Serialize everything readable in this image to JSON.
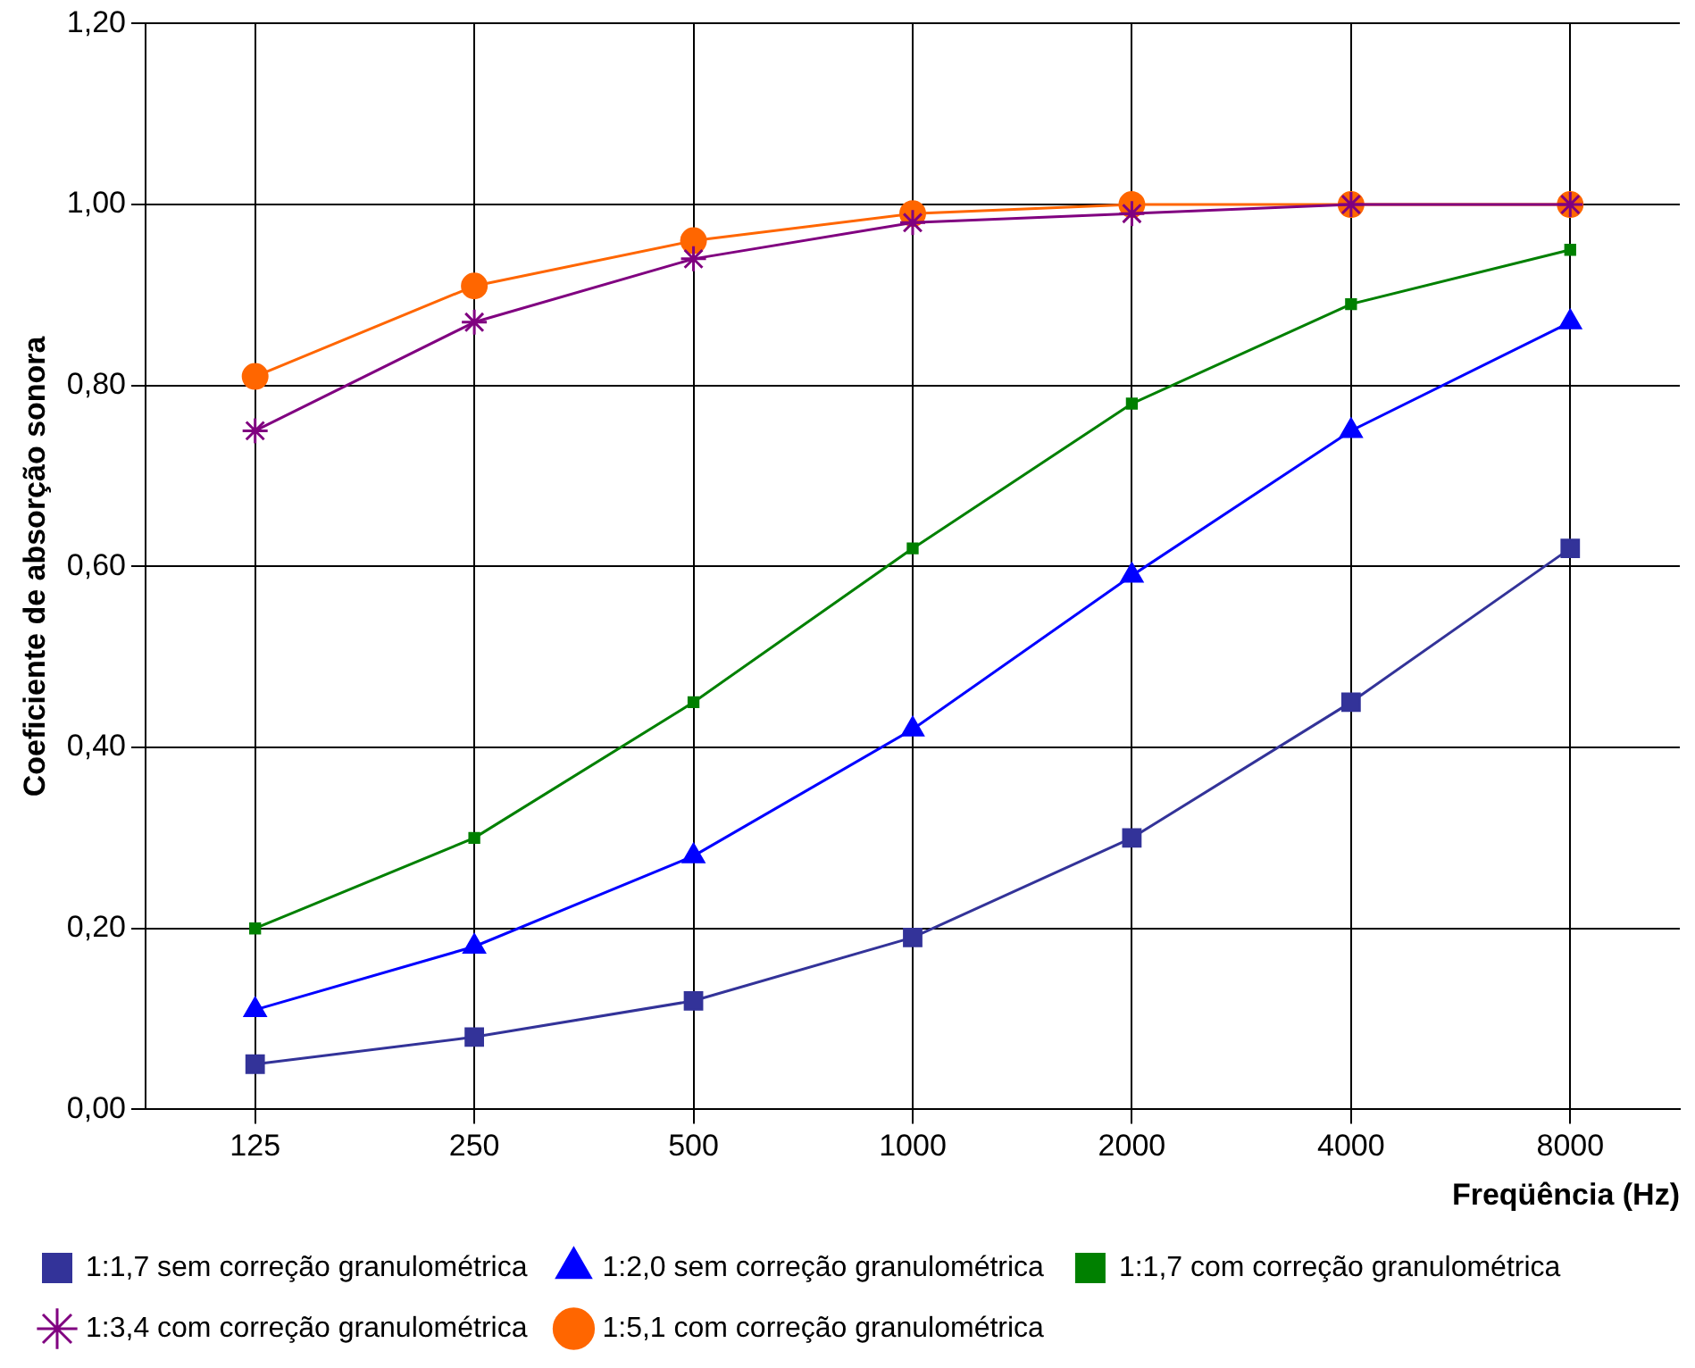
{
  "chart_data": {
    "type": "line",
    "ylabel": "Coeficiente de absorção sonora",
    "xlabel": "Freqüência (Hz)",
    "categories": [
      "125",
      "250",
      "500",
      "1000",
      "2000",
      "4000",
      "8000"
    ],
    "ylim": [
      0,
      1.2
    ],
    "yticks": [
      {
        "value": 0,
        "label": "0,00"
      },
      {
        "value": 0.2,
        "label": "0,20"
      },
      {
        "value": 0.4,
        "label": "0,40"
      },
      {
        "value": 0.6,
        "label": "0,60"
      },
      {
        "value": 0.8,
        "label": "0,80"
      },
      {
        "value": 1,
        "label": "1,00"
      },
      {
        "value": 1.2,
        "label": "1,20"
      }
    ],
    "grid": true,
    "legend": "bottom",
    "series": [
      {
        "name": "1:1,7 sem correção granulométrica",
        "color": "#333399",
        "marker": "square",
        "values": [
          0.05,
          0.08,
          0.12,
          0.19,
          0.3,
          0.45,
          0.62
        ]
      },
      {
        "name": "1:2,0 sem correção granulométrica",
        "color": "#0000ff",
        "marker": "triangle",
        "values": [
          0.11,
          0.18,
          0.28,
          0.42,
          0.59,
          0.75,
          0.87
        ]
      },
      {
        "name": "1:1,7 com correção granulométrica",
        "color": "#008000",
        "marker": "square",
        "values": [
          0.2,
          0.3,
          0.45,
          0.62,
          0.78,
          0.89,
          0.95
        ]
      },
      {
        "name": "1:3,4 com correção granulométrica",
        "color": "#800080",
        "marker": "cross",
        "values": [
          0.75,
          0.87,
          0.94,
          0.98,
          0.99,
          1.0,
          1.0
        ]
      },
      {
        "name": "1:5,1 com correção granulométrica",
        "color": "#ff6600",
        "marker": "circle",
        "values": [
          0.81,
          0.91,
          0.96,
          0.99,
          1.0,
          1.0,
          1.0
        ]
      }
    ]
  }
}
